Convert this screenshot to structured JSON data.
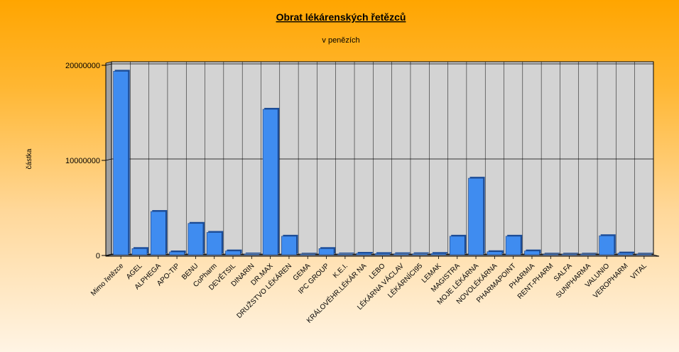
{
  "chart_data": {
    "type": "bar",
    "title": "Obrat lékárenských řetězců",
    "subtitle": "v penězích",
    "ylabel": "částka",
    "xlabel": "",
    "ylim": [
      0,
      20000000
    ],
    "yticks": [
      "0",
      "10000000",
      "20000000"
    ],
    "grid": true,
    "bar_color": "#3f8cf0",
    "categories": [
      "Mimo řetězce",
      "AGEL",
      "ALPHEGA",
      "APO-TIP",
      "BENU",
      "CoPharm",
      "DEVĚTSIL",
      "DINARIN",
      "DR.MAX",
      "DRUŽSTVO LÉKÁREN",
      "GEMA",
      "IPC GROUP",
      "K.E.I.",
      "KRÁLOVÉHR.LÉKÁR NA",
      "LEBO",
      "LÉKÁRNA VÁCLAV",
      "LÉKÁRNÍCI95",
      "LEMAK",
      "MAGISTRA",
      "MOJE LÉKÁRNA",
      "NOVOLÉKÁRNA",
      "PHARMAPOINT",
      "PHARMIA",
      "RENT-PHARM",
      "SALFA",
      "SUNPHARMA",
      "VALUNIO",
      "VEROPHARM",
      "VITAL"
    ],
    "values": [
      19300000,
      650000,
      4550000,
      300000,
      3300000,
      2350000,
      400000,
      80000,
      15300000,
      1950000,
      60000,
      650000,
      80000,
      150000,
      120000,
      100000,
      100000,
      130000,
      1950000,
      8050000,
      320000,
      1950000,
      400000,
      60000,
      60000,
      60000,
      2000000,
      180000,
      60000
    ]
  }
}
